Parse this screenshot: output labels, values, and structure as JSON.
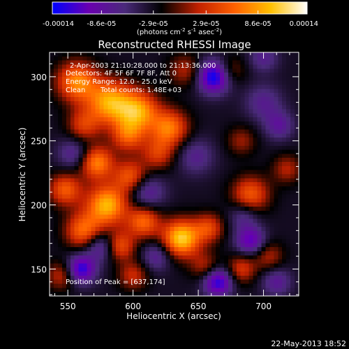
{
  "colorbar": {
    "tick_labels": [
      "-0.00014",
      "-8.6e-05",
      "-2.9e-05",
      "2.9e-05",
      "8.6e-05",
      "0.00014"
    ],
    "range": [
      -0.00014,
      0.00014
    ],
    "units_prefix": "(photons cm",
    "units_exp1": "-2",
    "units_mid": " s",
    "units_exp2": "-1",
    "units_mid2": " asec",
    "units_exp3": "-2",
    "units_suffix": ")",
    "colormap": [
      "#0000ff",
      "#6a00b0",
      "#4a2a7a",
      "#000000",
      "#c02000",
      "#ff6000",
      "#ffc000",
      "#ffffff"
    ]
  },
  "chart_data": {
    "type": "heatmap",
    "title": "Reconstructed RHESSI Image",
    "xlabel": "Heliocentric X (arcsec)",
    "ylabel": "Heliocentric Y (arcsec)",
    "xlim": [
      536,
      727
    ],
    "ylim": [
      129,
      319
    ],
    "xticks": [
      550,
      600,
      650,
      700
    ],
    "yticks": [
      150,
      200,
      250,
      300
    ],
    "colormap_note": "blue-purple negative, black zero, red-orange-yellow-white positive",
    "peak": [
      637,
      174
    ],
    "sources": [
      {
        "x": 557,
        "y": 296,
        "a": 0.75,
        "s": 11
      },
      {
        "x": 582,
        "y": 280,
        "a": 0.85,
        "s": 12
      },
      {
        "x": 604,
        "y": 273,
        "a": 0.8,
        "s": 11
      },
      {
        "x": 628,
        "y": 260,
        "a": 0.7,
        "s": 10
      },
      {
        "x": 562,
        "y": 262,
        "a": 0.45,
        "s": 9
      },
      {
        "x": 596,
        "y": 254,
        "a": 0.55,
        "s": 9
      },
      {
        "x": 619,
        "y": 240,
        "a": 0.45,
        "s": 9
      },
      {
        "x": 572,
        "y": 233,
        "a": 0.75,
        "s": 9
      },
      {
        "x": 598,
        "y": 222,
        "a": 0.6,
        "s": 9
      },
      {
        "x": 548,
        "y": 212,
        "a": 0.6,
        "s": 9
      },
      {
        "x": 580,
        "y": 200,
        "a": 0.9,
        "s": 11
      },
      {
        "x": 608,
        "y": 187,
        "a": 0.65,
        "s": 9
      },
      {
        "x": 562,
        "y": 180,
        "a": 0.65,
        "s": 10
      },
      {
        "x": 637,
        "y": 174,
        "a": 1.0,
        "s": 10
      },
      {
        "x": 590,
        "y": 168,
        "a": 0.55,
        "s": 8
      },
      {
        "x": 658,
        "y": 182,
        "a": 0.5,
        "s": 8
      },
      {
        "x": 545,
        "y": 145,
        "a": 0.4,
        "s": 8
      },
      {
        "x": 600,
        "y": 145,
        "a": 0.4,
        "s": 8
      },
      {
        "x": 655,
        "y": 152,
        "a": 0.35,
        "s": 8
      },
      {
        "x": 683,
        "y": 150,
        "a": 0.45,
        "s": 8
      },
      {
        "x": 704,
        "y": 160,
        "a": 0.35,
        "s": 8
      },
      {
        "x": 690,
        "y": 208,
        "a": 0.6,
        "s": 10
      },
      {
        "x": 718,
        "y": 228,
        "a": 0.35,
        "s": 8
      },
      {
        "x": 683,
        "y": 250,
        "a": 0.3,
        "s": 8
      },
      {
        "x": 640,
        "y": 305,
        "a": 0.35,
        "s": 9
      },
      {
        "x": 675,
        "y": 305,
        "a": 0.3,
        "s": 8
      },
      {
        "x": 555,
        "y": 240,
        "a": -0.35,
        "s": 9
      },
      {
        "x": 610,
        "y": 210,
        "a": -0.4,
        "s": 10
      },
      {
        "x": 560,
        "y": 150,
        "a": -0.7,
        "s": 8
      },
      {
        "x": 575,
        "y": 168,
        "a": -0.45,
        "s": 8
      },
      {
        "x": 618,
        "y": 160,
        "a": -0.35,
        "s": 8
      },
      {
        "x": 662,
        "y": 300,
        "a": -0.8,
        "s": 9
      },
      {
        "x": 700,
        "y": 280,
        "a": -0.3,
        "s": 10
      },
      {
        "x": 712,
        "y": 262,
        "a": -0.35,
        "s": 8
      },
      {
        "x": 648,
        "y": 238,
        "a": -0.3,
        "s": 10
      },
      {
        "x": 685,
        "y": 192,
        "a": -0.3,
        "s": 8
      },
      {
        "x": 690,
        "y": 172,
        "a": -0.55,
        "s": 8
      },
      {
        "x": 665,
        "y": 140,
        "a": -0.7,
        "s": 8
      },
      {
        "x": 710,
        "y": 140,
        "a": -0.35,
        "s": 8
      },
      {
        "x": 700,
        "y": 315,
        "a": -0.3,
        "s": 8
      }
    ]
  },
  "info": {
    "time_line": "2-Apr-2003 21:10:28.000 to 21:13:36.000",
    "detectors_line": "Detectors: 4F 5F 6F 7F 8F, Att 0",
    "energy_line": "Energy Range: 12.0 - 25.0 keV",
    "clean_label": "Clean",
    "counts_label": "Total counts: 1.48E+03",
    "peak_line": "Position of Peak = [637,174]"
  },
  "footer": {
    "datestamp": "22-May-2013 18:52"
  }
}
